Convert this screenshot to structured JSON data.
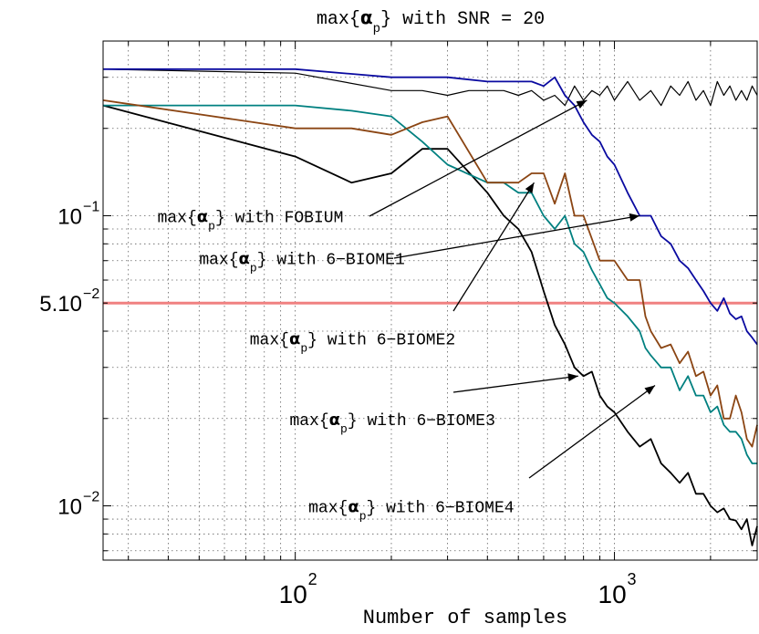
{
  "chart_data": {
    "type": "line",
    "title": {
      "prefix": "max{",
      "alpha": "α",
      "sub": "p",
      "suffix": "} with SNR = 20"
    },
    "xlabel": "Number of samples",
    "ylabel": "",
    "x_scale": "log",
    "y_scale": "log",
    "xlim": [
      25,
      2800
    ],
    "ylim": [
      0.0065,
      0.4
    ],
    "grid": true,
    "x_ticks": [
      {
        "value": 100,
        "base": "10",
        "exp": "2"
      },
      {
        "value": 1000,
        "base": "10",
        "exp": "3"
      }
    ],
    "y_ticks": [
      {
        "value": 0.1,
        "base": "10",
        "exp": "−1"
      },
      {
        "value": 0.05,
        "base": "5.10",
        "exp": "−2"
      },
      {
        "value": 0.01,
        "base": "10",
        "exp": "−2"
      }
    ],
    "threshold": {
      "value": 0.05,
      "color": "#f08080"
    },
    "series": [
      {
        "key": "fobium",
        "color": "#000000",
        "x": [
          25,
          100,
          200,
          250,
          300,
          350,
          400,
          450,
          500,
          550,
          600,
          650,
          700,
          750,
          800,
          850,
          900,
          950,
          1000,
          1100,
          1200,
          1300,
          1400,
          1500,
          1600,
          1700,
          1800,
          1900,
          2000,
          2100,
          2200,
          2300,
          2400,
          2500,
          2600,
          2700,
          2800
        ],
        "y": [
          0.32,
          0.31,
          0.27,
          0.27,
          0.26,
          0.27,
          0.27,
          0.27,
          0.26,
          0.27,
          0.25,
          0.26,
          0.24,
          0.28,
          0.25,
          0.27,
          0.26,
          0.28,
          0.25,
          0.29,
          0.25,
          0.27,
          0.24,
          0.28,
          0.26,
          0.29,
          0.25,
          0.27,
          0.24,
          0.29,
          0.26,
          0.28,
          0.25,
          0.27,
          0.25,
          0.28,
          0.26
        ]
      },
      {
        "key": "biome1",
        "color": "#0a0aa0",
        "x": [
          25,
          100,
          200,
          300,
          400,
          500,
          550,
          600,
          650,
          700,
          750,
          800,
          850,
          900,
          950,
          1000,
          1100,
          1200,
          1300,
          1400,
          1500,
          1600,
          1700,
          1800,
          1900,
          2000,
          2100,
          2200,
          2300,
          2400,
          2500,
          2600,
          2700,
          2800
        ],
        "y": [
          0.32,
          0.32,
          0.3,
          0.3,
          0.29,
          0.29,
          0.29,
          0.28,
          0.3,
          0.26,
          0.24,
          0.21,
          0.19,
          0.18,
          0.16,
          0.15,
          0.12,
          0.1,
          0.1,
          0.085,
          0.08,
          0.07,
          0.066,
          0.06,
          0.055,
          0.05,
          0.047,
          0.052,
          0.046,
          0.044,
          0.045,
          0.04,
          0.038,
          0.036
        ]
      },
      {
        "key": "biome2",
        "color": "#8b4513",
        "x": [
          25,
          100,
          150,
          200,
          250,
          300,
          400,
          450,
          500,
          550,
          600,
          650,
          700,
          750,
          800,
          900,
          1000,
          1100,
          1200,
          1250,
          1300,
          1400,
          1500,
          1600,
          1700,
          1800,
          1900,
          2000,
          2100,
          2200,
          2300,
          2400,
          2500,
          2600,
          2700,
          2800
        ],
        "y": [
          0.25,
          0.2,
          0.2,
          0.19,
          0.21,
          0.22,
          0.13,
          0.13,
          0.13,
          0.14,
          0.14,
          0.11,
          0.14,
          0.1,
          0.1,
          0.07,
          0.07,
          0.06,
          0.06,
          0.045,
          0.04,
          0.035,
          0.036,
          0.031,
          0.034,
          0.028,
          0.029,
          0.024,
          0.026,
          0.02,
          0.02,
          0.024,
          0.021,
          0.017,
          0.016,
          0.019
        ]
      },
      {
        "key": "biome3",
        "color": "#008080",
        "x": [
          25,
          100,
          150,
          200,
          250,
          300,
          400,
          450,
          500,
          550,
          600,
          650,
          700,
          750,
          800,
          850,
          900,
          950,
          1000,
          1100,
          1200,
          1250,
          1300,
          1400,
          1500,
          1600,
          1700,
          1800,
          1900,
          2000,
          2100,
          2200,
          2300,
          2400,
          2500,
          2600,
          2700,
          2800
        ],
        "y": [
          0.24,
          0.24,
          0.23,
          0.22,
          0.18,
          0.15,
          0.13,
          0.13,
          0.12,
          0.12,
          0.1,
          0.09,
          0.1,
          0.08,
          0.075,
          0.065,
          0.058,
          0.052,
          0.05,
          0.045,
          0.04,
          0.035,
          0.033,
          0.03,
          0.03,
          0.025,
          0.028,
          0.024,
          0.024,
          0.021,
          0.022,
          0.019,
          0.018,
          0.018,
          0.017,
          0.015,
          0.014,
          0.014
        ]
      },
      {
        "key": "biome4",
        "color": "#000000",
        "x": [
          25,
          100,
          150,
          200,
          250,
          300,
          400,
          450,
          500,
          550,
          600,
          650,
          700,
          750,
          800,
          850,
          900,
          950,
          1000,
          1100,
          1200,
          1300,
          1400,
          1500,
          1600,
          1700,
          1800,
          1900,
          2000,
          2100,
          2200,
          2300,
          2400,
          2500,
          2600,
          2700,
          2800
        ],
        "y": [
          0.24,
          0.16,
          0.13,
          0.14,
          0.17,
          0.17,
          0.12,
          0.1,
          0.09,
          0.075,
          0.055,
          0.042,
          0.036,
          0.03,
          0.028,
          0.029,
          0.024,
          0.022,
          0.021,
          0.018,
          0.016,
          0.017,
          0.014,
          0.013,
          0.012,
          0.013,
          0.011,
          0.011,
          0.01,
          0.0095,
          0.0098,
          0.009,
          0.0089,
          0.0083,
          0.009,
          0.0073,
          0.0085
        ]
      }
    ],
    "annotations": [
      {
        "prefix": "max{",
        "alpha": "α",
        "sub": "p",
        "suffix": "} with FOBIUM",
        "series": "fobium",
        "target_x": 820,
        "target_y": 0.25,
        "text_x": 37,
        "text_y": 0.095
      },
      {
        "prefix": "max{",
        "alpha": "α",
        "sub": "p",
        "suffix": "} with 6−BIOME1",
        "series": "biome1",
        "target_x": 1200,
        "target_y": 0.1,
        "text_x": 50,
        "text_y": 0.068
      },
      {
        "prefix": "max{",
        "alpha": "α",
        "sub": "p",
        "suffix": "} with 6−BIOME2",
        "series": "biome2",
        "target_x": 560,
        "target_y": 0.13,
        "text_x": 72,
        "text_y": 0.036
      },
      {
        "prefix": "max{",
        "alpha": "α",
        "sub": "p",
        "suffix": "} with 6−BIOME3",
        "series": "biome3",
        "target_x": 770,
        "target_y": 0.028,
        "text_x": 96,
        "text_y": 0.019
      },
      {
        "prefix": "max{",
        "alpha": "α",
        "sub": "p",
        "suffix": "} with 6−BIOME4",
        "series": "biome4",
        "target_x": 1340,
        "target_y": 0.026,
        "text_x": 110,
        "text_y": 0.0095
      }
    ]
  }
}
